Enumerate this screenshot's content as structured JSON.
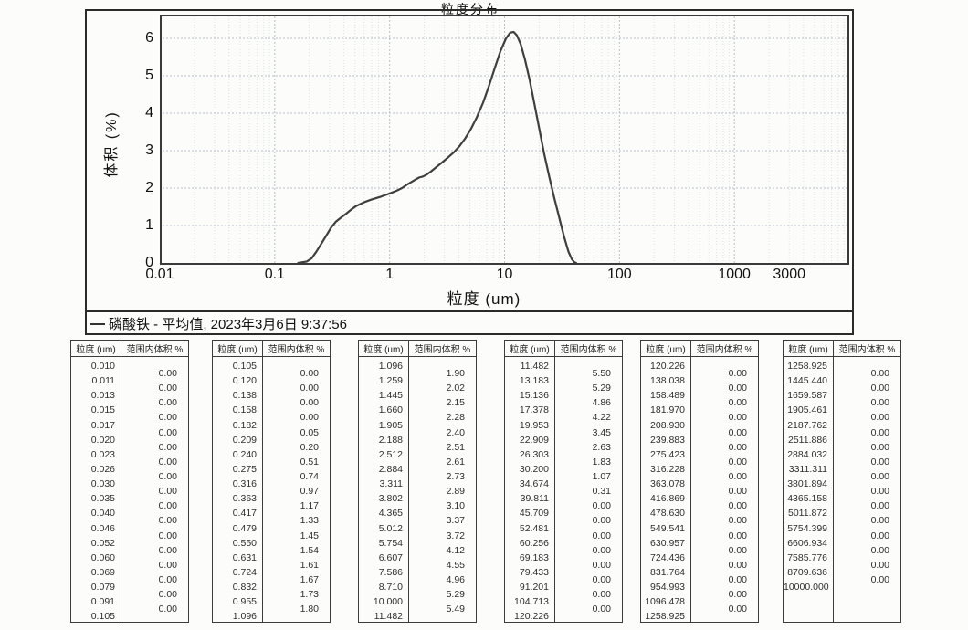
{
  "chart": {
    "title": "粒度分布",
    "ylabel": "体积 (%)",
    "xlabel": "粒度 (um)",
    "legend_text": "磷酸铁 - 平均值, 2023年3月6日 9:37:56"
  },
  "chart_data": {
    "type": "line",
    "title": "粒度分布",
    "xlabel": "粒度 (um)",
    "ylabel": "体积 (%)",
    "x_scale": "log",
    "xlim": [
      0.01,
      10000
    ],
    "ylim": [
      0,
      6.63
    ],
    "grid": true,
    "legend_position": "bottom",
    "x_ticks": [
      {
        "v": 0.01,
        "label": "0.01"
      },
      {
        "v": 0.1,
        "label": "0.1"
      },
      {
        "v": 1,
        "label": "1"
      },
      {
        "v": 10,
        "label": "10"
      },
      {
        "v": 100,
        "label": "100"
      },
      {
        "v": 1000,
        "label": "1000"
      },
      {
        "v": 3000,
        "label": "3000"
      }
    ],
    "y_ticks": [
      {
        "v": 0,
        "label": "0"
      },
      {
        "v": 1,
        "label": "1"
      },
      {
        "v": 2,
        "label": "2"
      },
      {
        "v": 3,
        "label": "3"
      },
      {
        "v": 4,
        "label": "4"
      },
      {
        "v": 5,
        "label": "5"
      },
      {
        "v": 6,
        "label": "6"
      }
    ],
    "series": [
      {
        "name": "磷酸铁 - 平均值",
        "points": [
          [
            0.16,
            0.0
          ],
          [
            0.19,
            0.04
          ],
          [
            0.209,
            0.12
          ],
          [
            0.23,
            0.3
          ],
          [
            0.255,
            0.52
          ],
          [
            0.282,
            0.74
          ],
          [
            0.31,
            0.95
          ],
          [
            0.34,
            1.1
          ],
          [
            0.38,
            1.22
          ],
          [
            0.42,
            1.32
          ],
          [
            0.465,
            1.43
          ],
          [
            0.51,
            1.52
          ],
          [
            0.56,
            1.58
          ],
          [
            0.62,
            1.64
          ],
          [
            0.69,
            1.69
          ],
          [
            0.76,
            1.73
          ],
          [
            0.84,
            1.77
          ],
          [
            0.93,
            1.82
          ],
          [
            1.03,
            1.87
          ],
          [
            1.15,
            1.93
          ],
          [
            1.28,
            2.0
          ],
          [
            1.43,
            2.1
          ],
          [
            1.6,
            2.19
          ],
          [
            1.8,
            2.28
          ],
          [
            1.95,
            2.31
          ],
          [
            2.1,
            2.36
          ],
          [
            2.3,
            2.45
          ],
          [
            2.55,
            2.56
          ],
          [
            2.85,
            2.68
          ],
          [
            3.2,
            2.81
          ],
          [
            3.6,
            2.95
          ],
          [
            4.05,
            3.12
          ],
          [
            4.55,
            3.33
          ],
          [
            5.1,
            3.58
          ],
          [
            5.75,
            3.9
          ],
          [
            6.5,
            4.28
          ],
          [
            7.3,
            4.72
          ],
          [
            8.2,
            5.2
          ],
          [
            9.2,
            5.65
          ],
          [
            10.3,
            6.0
          ],
          [
            11.2,
            6.15
          ],
          [
            12.0,
            6.17
          ],
          [
            12.8,
            6.08
          ],
          [
            13.8,
            5.85
          ],
          [
            15.0,
            5.45
          ],
          [
            16.5,
            4.9
          ],
          [
            18.2,
            4.25
          ],
          [
            20.0,
            3.6
          ],
          [
            22.0,
            2.95
          ],
          [
            24.5,
            2.3
          ],
          [
            27.0,
            1.75
          ],
          [
            30.0,
            1.2
          ],
          [
            33.0,
            0.7
          ],
          [
            36.0,
            0.3
          ],
          [
            38.5,
            0.1
          ],
          [
            40.5,
            0.02
          ],
          [
            42.0,
            0.0
          ]
        ]
      }
    ]
  },
  "tables": [
    {
      "headers": [
        "粒度 (um)",
        "范围内体积 %"
      ],
      "sizes": [
        "0.010",
        "0.011",
        "0.013",
        "0.015",
        "0.017",
        "0.020",
        "0.023",
        "0.026",
        "0.030",
        "0.035",
        "0.040",
        "0.046",
        "0.052",
        "0.060",
        "0.069",
        "0.079",
        "0.091",
        "0.105"
      ],
      "volumes": [
        "0.00",
        "0.00",
        "0.00",
        "0.00",
        "0.00",
        "0.00",
        "0.00",
        "0.00",
        "0.00",
        "0.00",
        "0.00",
        "0.00",
        "0.00",
        "0.00",
        "0.00",
        "0.00",
        "0.00"
      ]
    },
    {
      "headers": [
        "粒度 (um)",
        "范围内体积 %"
      ],
      "sizes": [
        "0.105",
        "0.120",
        "0.138",
        "0.158",
        "0.182",
        "0.209",
        "0.240",
        "0.275",
        "0.316",
        "0.363",
        "0.417",
        "0.479",
        "0.550",
        "0.631",
        "0.724",
        "0.832",
        "0.955",
        "1.096"
      ],
      "volumes": [
        "0.00",
        "0.00",
        "0.00",
        "0.00",
        "0.05",
        "0.20",
        "0.51",
        "0.74",
        "0.97",
        "1.17",
        "1.33",
        "1.45",
        "1.54",
        "1.61",
        "1.67",
        "1.73",
        "1.80"
      ]
    },
    {
      "headers": [
        "粒度 (um)",
        "范围内体积 %"
      ],
      "sizes": [
        "1.096",
        "1.259",
        "1.445",
        "1.660",
        "1.905",
        "2.188",
        "2.512",
        "2.884",
        "3.311",
        "3.802",
        "4.365",
        "5.012",
        "5.754",
        "6.607",
        "7.586",
        "8.710",
        "10.000",
        "11.482"
      ],
      "volumes": [
        "1.90",
        "2.02",
        "2.15",
        "2.28",
        "2.40",
        "2.51",
        "2.61",
        "2.73",
        "2.89",
        "3.10",
        "3.37",
        "3.72",
        "4.12",
        "4.55",
        "4.96",
        "5.29",
        "5.49"
      ]
    },
    {
      "headers": [
        "粒度 (um)",
        "范围内体积 %"
      ],
      "sizes": [
        "11.482",
        "13.183",
        "15.136",
        "17.378",
        "19.953",
        "22.909",
        "26.303",
        "30.200",
        "34.674",
        "39.811",
        "45.709",
        "52.481",
        "60.256",
        "69.183",
        "79.433",
        "91.201",
        "104.713",
        "120.226"
      ],
      "volumes": [
        "5.50",
        "5.29",
        "4.86",
        "4.22",
        "3.45",
        "2.63",
        "1.83",
        "1.07",
        "0.31",
        "0.00",
        "0.00",
        "0.00",
        "0.00",
        "0.00",
        "0.00",
        "0.00",
        "0.00"
      ]
    },
    {
      "headers": [
        "粒度 (um)",
        "范围内体积 %"
      ],
      "sizes": [
        "120.226",
        "138.038",
        "158.489",
        "181.970",
        "208.930",
        "239.883",
        "275.423",
        "316.228",
        "363.078",
        "416.869",
        "478.630",
        "549.541",
        "630.957",
        "724.436",
        "831.764",
        "954.993",
        "1096.478",
        "1258.925"
      ],
      "volumes": [
        "0.00",
        "0.00",
        "0.00",
        "0.00",
        "0.00",
        "0.00",
        "0.00",
        "0.00",
        "0.00",
        "0.00",
        "0.00",
        "0.00",
        "0.00",
        "0.00",
        "0.00",
        "0.00",
        "0.00"
      ]
    },
    {
      "headers": [
        "粒度 (um)",
        "范围内体积 %"
      ],
      "sizes": [
        "1258.925",
        "1445.440",
        "1659.587",
        "1905.461",
        "2187.762",
        "2511.886",
        "2884.032",
        "3311.311",
        "3801.894",
        "4365.158",
        "5011.872",
        "5754.399",
        "6606.934",
        "7585.776",
        "8709.636",
        "10000.000"
      ],
      "volumes": [
        "0.00",
        "0.00",
        "0.00",
        "0.00",
        "0.00",
        "0.00",
        "0.00",
        "0.00",
        "0.00",
        "0.00",
        "0.00",
        "0.00",
        "0.00",
        "0.00",
        "0.00"
      ]
    }
  ],
  "colors": {
    "curve": "#3f3f3f",
    "grid_major": "#b7c0cb",
    "grid_minor": "#dde2e8",
    "border": "#2b2b2b",
    "text": "#111111"
  }
}
